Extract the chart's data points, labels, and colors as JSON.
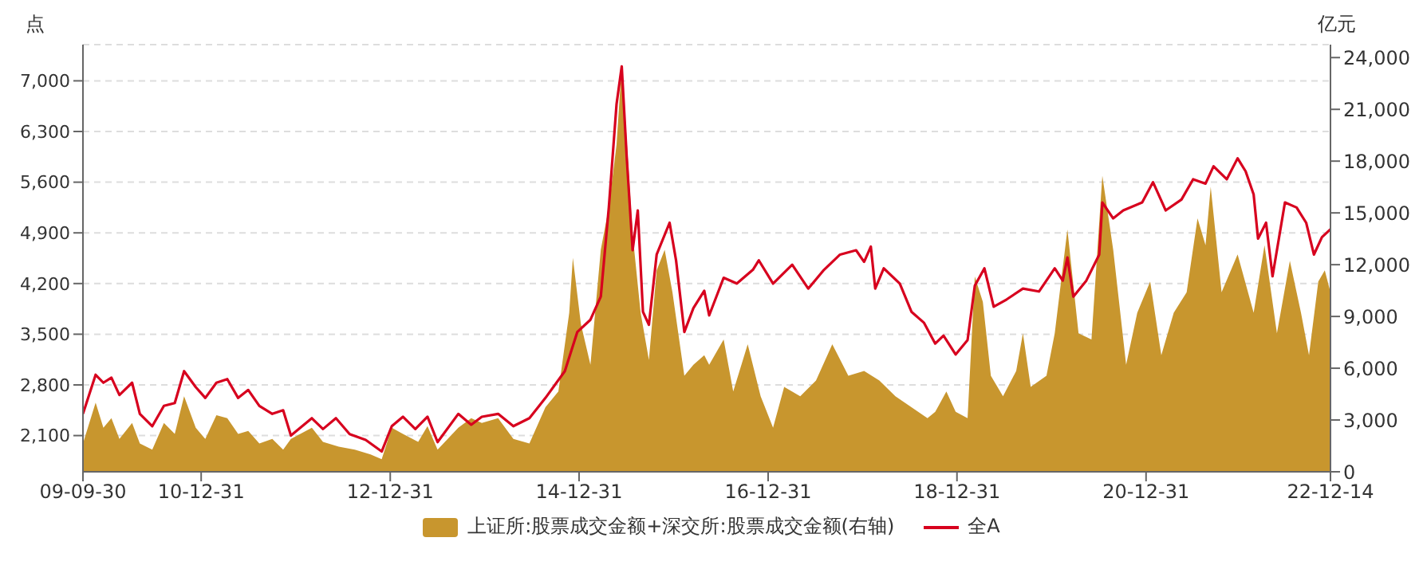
{
  "chart_data": {
    "type": "line",
    "ylabel": "点",
    "y2label": "亿元",
    "xlim": [
      "2009-09-30",
      "2022-12-14"
    ],
    "xticks": [
      {
        "value": "2009-09-30",
        "label": "09-09-30"
      },
      {
        "value": "2010-12-31",
        "label": "10-12-31"
      },
      {
        "value": "2012-12-31",
        "label": "12-12-31"
      },
      {
        "value": "2014-12-31",
        "label": "14-12-31"
      },
      {
        "value": "2016-12-31",
        "label": "16-12-31"
      },
      {
        "value": "2018-12-31",
        "label": "18-12-31"
      },
      {
        "value": "2020-12-31",
        "label": "20-12-31"
      },
      {
        "value": "2022-12-14",
        "label": "22-12-14"
      }
    ],
    "ylim": [
      1600,
      7500
    ],
    "yticks": [
      {
        "value": 2100,
        "label": "2,100"
      },
      {
        "value": 2800,
        "label": "2,800"
      },
      {
        "value": 3500,
        "label": "3,500"
      },
      {
        "value": 4200,
        "label": "4,200"
      },
      {
        "value": 4900,
        "label": "4,900"
      },
      {
        "value": 5600,
        "label": "5,600"
      },
      {
        "value": 6300,
        "label": "6,300"
      },
      {
        "value": 7000,
        "label": "7,000"
      }
    ],
    "y2lim": [
      0,
      24750
    ],
    "y2ticks": [
      0,
      {
        "value": 3000,
        "label": "3,000"
      },
      {
        "value": 6000,
        "label": "6,000"
      },
      {
        "value": 9000,
        "label": "9,000"
      },
      {
        "value": 12000,
        "label": "12,000"
      },
      {
        "value": 15000,
        "label": "15,000"
      },
      {
        "value": 18000,
        "label": "18,000"
      },
      {
        "value": 21000,
        "label": "21,000"
      },
      {
        "value": 24000,
        "label": "24,000"
      }
    ],
    "grid": "y",
    "legend": "bottom",
    "series": [
      {
        "name": "上证所:股票成交金额+深交所:股票成交金额(右轴)",
        "type": "area",
        "axis": "y2",
        "color": "#c8962e",
        "x": [
          "2009-09-30",
          "2009-11-18",
          "2009-12-18",
          "2010-01-18",
          "2010-02-18",
          "2010-04-08",
          "2010-05-08",
          "2010-06-25",
          "2010-08-09",
          "2010-09-20",
          "2010-10-26",
          "2010-12-10",
          "2011-01-16",
          "2011-02-28",
          "2011-04-11",
          "2011-05-23",
          "2011-07-01",
          "2011-08-13",
          "2011-10-02",
          "2011-11-13",
          "2011-12-13",
          "2012-03-03",
          "2012-04-15",
          "2012-06-15",
          "2012-08-16",
          "2012-10-16",
          "2012-11-28",
          "2013-01-06",
          "2013-02-18",
          "2013-04-18",
          "2013-05-24",
          "2013-07-02",
          "2013-09-20",
          "2013-11-09",
          "2013-12-20",
          "2014-02-21",
          "2014-04-21",
          "2014-06-22",
          "2014-08-23",
          "2014-10-12",
          "2014-11-23",
          "2014-12-07",
          "2015-01-07",
          "2015-02-13",
          "2015-03-25",
          "2015-04-25",
          "2015-05-25",
          "2015-06-14",
          "2015-07-03",
          "2015-07-26",
          "2015-08-26",
          "2015-09-27",
          "2015-10-27",
          "2015-11-27",
          "2015-12-27",
          "2016-02-11",
          "2016-03-17",
          "2016-04-28",
          "2016-05-17",
          "2016-07-12",
          "2016-08-18",
          "2016-10-13",
          "2016-12-02",
          "2017-01-19",
          "2017-03-03",
          "2017-05-04",
          "2017-07-04",
          "2017-09-05",
          "2017-11-06",
          "2018-01-06",
          "2018-03-06",
          "2018-05-07",
          "2018-07-08",
          "2018-09-08",
          "2018-10-08",
          "2018-11-20",
          "2018-12-26",
          "2019-02-10",
          "2019-03-10",
          "2019-04-10",
          "2019-05-11",
          "2019-06-27",
          "2019-08-17",
          "2019-09-12",
          "2019-10-12",
          "2019-12-12",
          "2020-01-13",
          "2020-03-02",
          "2020-04-14",
          "2020-06-03",
          "2020-07-15",
          "2020-08-26",
          "2020-10-15",
          "2020-11-27",
          "2021-01-16",
          "2021-02-28",
          "2021-04-17",
          "2021-06-06",
          "2021-07-18",
          "2021-08-18",
          "2021-09-07",
          "2021-10-19",
          "2021-12-20",
          "2022-02-20",
          "2022-04-03",
          "2022-05-21",
          "2022-07-10",
          "2022-08-22",
          "2022-09-22",
          "2022-10-28",
          "2022-11-22",
          "2022-12-14"
        ],
        "values": [
          1640,
          4010,
          2550,
          3100,
          1900,
          2830,
          1640,
          1280,
          2830,
          2190,
          4380,
          2550,
          1900,
          3280,
          3100,
          2190,
          2370,
          1640,
          1900,
          1280,
          1900,
          2550,
          1730,
          1460,
          1280,
          1000,
          730,
          2550,
          2190,
          1730,
          2640,
          1280,
          2550,
          3100,
          2830,
          3100,
          1900,
          1640,
          3740,
          4650,
          9210,
          12400,
          8570,
          6200,
          12860,
          15320,
          18970,
          23530,
          19240,
          13770,
          9210,
          6480,
          11670,
          12860,
          10400,
          5560,
          6200,
          6750,
          6200,
          7660,
          4650,
          7390,
          4380,
          2550,
          4920,
          4380,
          5290,
          7390,
          5560,
          5840,
          5290,
          4380,
          3740,
          3100,
          3470,
          4650,
          3470,
          3100,
          11310,
          9850,
          5560,
          4380,
          5840,
          8020,
          4920,
          5560,
          8020,
          14040,
          8020,
          7660,
          17150,
          12860,
          6200,
          9210,
          11030,
          6750,
          9210,
          10400,
          14680,
          13130,
          16510,
          10400,
          12590,
          9210,
          13130,
          8020,
          12220,
          9210,
          6750,
          11030,
          11670,
          10400
        ]
      },
      {
        "name": "全A",
        "color": "#d7001e",
        "x": [
          "2009-09-30",
          "2009-11-18",
          "2009-12-18",
          "2010-01-18",
          "2010-02-18",
          "2010-04-08",
          "2010-05-08",
          "2010-06-25",
          "2010-08-09",
          "2010-09-20",
          "2010-10-26",
          "2010-12-10",
          "2011-01-16",
          "2011-02-28",
          "2011-04-11",
          "2011-05-23",
          "2011-07-01",
          "2011-08-13",
          "2011-10-02",
          "2011-11-13",
          "2011-12-13",
          "2012-03-03",
          "2012-04-15",
          "2012-06-04",
          "2012-07-27",
          "2012-09-27",
          "2012-11-28",
          "2013-01-06",
          "2013-02-18",
          "2013-04-07",
          "2013-05-24",
          "2013-07-02",
          "2013-09-20",
          "2013-11-09",
          "2013-12-20",
          "2014-02-21",
          "2014-04-21",
          "2014-06-22",
          "2014-08-23",
          "2014-11-06",
          "2014-12-24",
          "2015-02-13",
          "2015-03-25",
          "2015-04-25",
          "2015-05-25",
          "2015-06-14",
          "2015-07-03",
          "2015-07-26",
          "2015-08-15",
          "2015-09-04",
          "2015-09-27",
          "2015-10-27",
          "2015-12-16",
          "2016-01-10",
          "2016-02-11",
          "2016-03-17",
          "2016-04-28",
          "2016-05-17",
          "2016-07-12",
          "2016-09-01",
          "2016-11-02",
          "2016-11-25",
          "2017-01-19",
          "2017-04-03",
          "2017-06-04",
          "2017-08-04",
          "2017-10-05",
          "2017-12-06",
          "2018-01-06",
          "2018-02-01",
          "2018-02-18",
          "2018-03-23",
          "2018-05-24",
          "2018-07-08",
          "2018-08-25",
          "2018-10-08",
          "2018-11-09",
          "2018-12-26",
          "2019-02-10",
          "2019-03-10",
          "2019-04-16",
          "2019-05-22",
          "2019-07-11",
          "2019-09-12",
          "2019-11-13",
          "2020-01-13",
          "2020-02-13",
          "2020-03-02",
          "2020-03-25",
          "2020-05-14",
          "2020-07-03",
          "2020-07-15",
          "2020-08-26",
          "2020-10-04",
          "2020-12-16",
          "2021-01-27",
          "2021-03-17",
          "2021-05-17",
          "2021-07-01",
          "2021-08-18",
          "2021-09-18",
          "2021-11-08",
          "2021-12-20",
          "2022-01-20",
          "2022-02-20",
          "2022-03-09",
          "2022-04-09",
          "2022-05-04",
          "2022-06-21",
          "2022-08-05",
          "2022-09-11",
          "2022-10-11",
          "2022-11-11",
          "2022-12-14"
        ],
        "values": [
          2400,
          2940,
          2830,
          2900,
          2660,
          2830,
          2400,
          2230,
          2510,
          2550,
          2990,
          2770,
          2620,
          2830,
          2880,
          2620,
          2730,
          2510,
          2400,
          2450,
          2100,
          2340,
          2190,
          2340,
          2120,
          2040,
          1880,
          2230,
          2360,
          2190,
          2360,
          2010,
          2400,
          2250,
          2360,
          2400,
          2230,
          2340,
          2620,
          2990,
          3530,
          3700,
          4020,
          5250,
          6680,
          7200,
          5960,
          4660,
          5210,
          3810,
          3630,
          4600,
          5040,
          4520,
          3530,
          3860,
          4100,
          3760,
          4280,
          4200,
          4390,
          4520,
          4200,
          4460,
          4130,
          4390,
          4600,
          4660,
          4500,
          4710,
          4130,
          4410,
          4200,
          3810,
          3660,
          3370,
          3480,
          3220,
          3420,
          4170,
          4410,
          3880,
          3980,
          4130,
          4090,
          4410,
          4240,
          4560,
          4020,
          4240,
          4600,
          5320,
          5100,
          5210,
          5320,
          5600,
          5210,
          5360,
          5640,
          5580,
          5820,
          5640,
          5930,
          5750,
          5430,
          4820,
          5040,
          4300,
          5320,
          5250,
          5040,
          4600,
          4840,
          4950
        ]
      }
    ]
  }
}
